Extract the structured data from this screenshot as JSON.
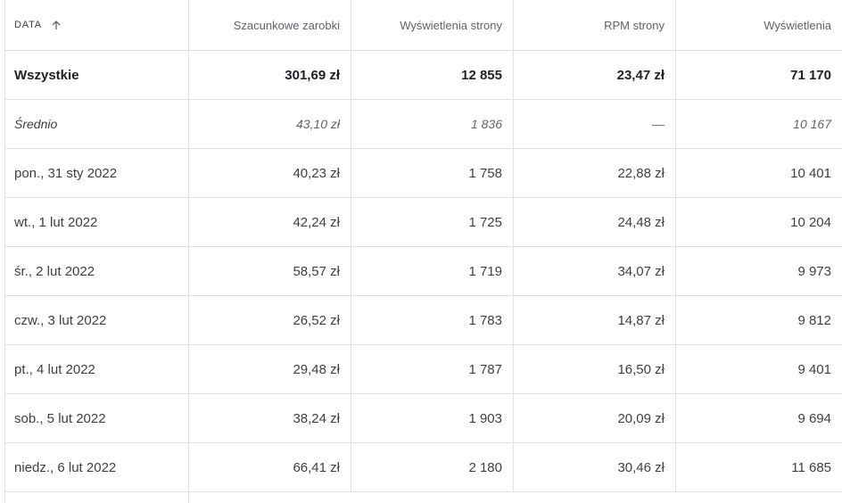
{
  "header": {
    "date": "DATA",
    "earnings": "Szacunkowe zarobki",
    "page_views": "Wyświetlenia strony",
    "page_rpm": "RPM strony",
    "impressions": "Wyświetlenia"
  },
  "total": {
    "label": "Wszystkie",
    "earnings": "301,69 zł",
    "page_views": "12 855",
    "page_rpm": "23,47 zł",
    "impressions": "71 170"
  },
  "average": {
    "label": "Średnio",
    "earnings": "43,10 zł",
    "page_views": "1 836",
    "page_rpm": "—",
    "impressions": "10 167"
  },
  "rows": [
    {
      "date": "pon., 31 sty 2022",
      "earnings": "40,23 zł",
      "page_views": "1 758",
      "page_rpm": "22,88 zł",
      "impressions": "10 401"
    },
    {
      "date": "wt., 1 lut 2022",
      "earnings": "42,24 zł",
      "page_views": "1 725",
      "page_rpm": "24,48 zł",
      "impressions": "10 204"
    },
    {
      "date": "śr., 2 lut 2022",
      "earnings": "58,57 zł",
      "page_views": "1 719",
      "page_rpm": "34,07 zł",
      "impressions": "9 973"
    },
    {
      "date": "czw., 3 lut 2022",
      "earnings": "26,52 zł",
      "page_views": "1 783",
      "page_rpm": "14,87 zł",
      "impressions": "9 812"
    },
    {
      "date": "pt., 4 lut 2022",
      "earnings": "29,48 zł",
      "page_views": "1 787",
      "page_rpm": "16,50 zł",
      "impressions": "9 401"
    },
    {
      "date": "sob., 5 lut 2022",
      "earnings": "38,24 zł",
      "page_views": "1 903",
      "page_rpm": "20,09 zł",
      "impressions": "9 694"
    },
    {
      "date": "niedz., 6 lut 2022",
      "earnings": "66,41 zł",
      "page_views": "2 180",
      "page_rpm": "30,46 zł",
      "impressions": "11 685"
    }
  ]
}
